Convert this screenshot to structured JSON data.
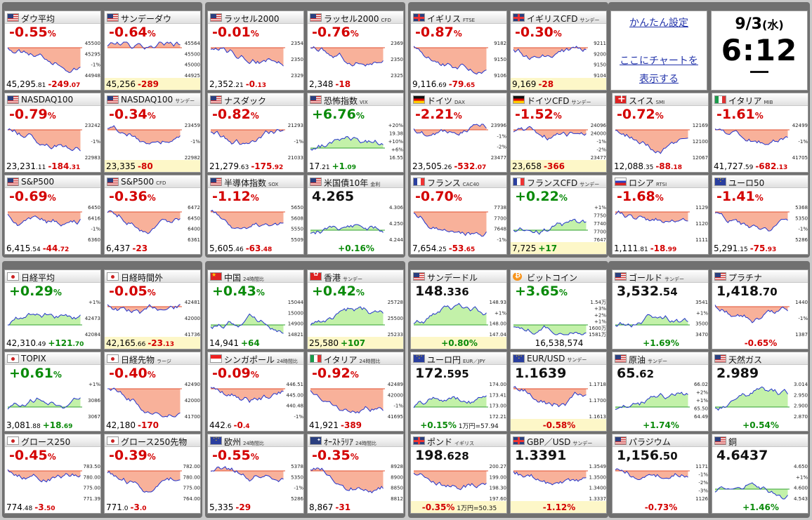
{
  "settings": {
    "link1": "かんたん設定",
    "link2a": "ここにチャートを",
    "link2b": "表示する"
  },
  "clock": {
    "date": "9/3",
    "weekday": "(水)",
    "time": "6:12"
  },
  "tiles": [
    {
      "name": "ダウ平均",
      "sub": "",
      "flag": "us",
      "big": "-0.55",
      "bigunit": "%",
      "dir": "neg",
      "last": "45,295",
      "lastdec": ".81",
      "chg": "-249",
      "chgdec": ".07",
      "labels": [
        "45500",
        "45295",
        "-1%",
        "44948"
      ],
      "mode": "pct"
    },
    {
      "name": "サンデーダウ",
      "sub": "",
      "flag": "us",
      "big": "-0.64",
      "bigunit": "%",
      "dir": "neg",
      "last": "45,256",
      "lastdec": "",
      "chg": "-289",
      "chgdec": "",
      "labels": [
        "45564",
        "45500",
        "45000",
        "44925"
      ],
      "mode": "pct",
      "yellow": true
    },
    {
      "name": "ラッセル2000",
      "sub": "",
      "flag": "us",
      "big": "-0.01",
      "bigunit": "%",
      "dir": "neg",
      "last": "2,352",
      "lastdec": ".21",
      "chg": "-0",
      "chgdec": ".13",
      "labels": [
        "2354",
        "2350",
        "2329"
      ],
      "mode": "pct"
    },
    {
      "name": "ラッセル2000",
      "sub": "CFD",
      "flag": "us",
      "big": "-0.76",
      "bigunit": "%",
      "dir": "neg",
      "last": "2,348",
      "lastdec": "",
      "chg": "-18",
      "chgdec": "",
      "labels": [
        "2369",
        "2350",
        "2325"
      ],
      "mode": "pct"
    },
    {
      "name": "イギリス",
      "sub": "FTSE",
      "flag": "gb",
      "big": "-0.87",
      "bigunit": "%",
      "dir": "neg",
      "last": "9,116",
      "lastdec": ".69",
      "chg": "-79",
      "chgdec": ".65",
      "labels": [
        "9182",
        "9150",
        "9106"
      ],
      "mode": "pct"
    },
    {
      "name": "イギリスCFD",
      "sub": "サンデー",
      "flag": "gb",
      "big": "-0.30",
      "bigunit": "%",
      "dir": "neg",
      "last": "9,169",
      "lastdec": "",
      "chg": "-28",
      "chgdec": "",
      "labels": [
        "9211",
        "9200",
        "9150",
        "9104"
      ],
      "mode": "pct",
      "yellow": true
    },
    {
      "name": "NASDAQ100",
      "sub": "",
      "flag": "us",
      "big": "-0.79",
      "bigunit": "%",
      "dir": "neg",
      "last": "23,231",
      "lastdec": ".11",
      "chg": "-184",
      "chgdec": ".31",
      "labels": [
        "23242",
        "-1%",
        "22983"
      ],
      "mode": "pct"
    },
    {
      "name": "NASDAQ100",
      "sub": "サンデー",
      "flag": "us",
      "big": "-0.34",
      "bigunit": "%",
      "dir": "neg",
      "last": "23,335",
      "lastdec": "",
      "chg": "-80",
      "chgdec": "",
      "labels": [
        "23459",
        "-1%",
        "22982"
      ],
      "mode": "pct",
      "yellow": true
    },
    {
      "name": "ナスダック",
      "sub": "",
      "flag": "us",
      "big": "-0.82",
      "bigunit": "%",
      "dir": "neg",
      "last": "21,279",
      "lastdec": ".63",
      "chg": "-175",
      "chgdec": ".92",
      "labels": [
        "21293",
        "-1%",
        "21033"
      ],
      "mode": "pct"
    },
    {
      "name": "恐怖指数",
      "sub": "VIX",
      "flag": "us",
      "big": "+6.76",
      "bigunit": "%",
      "dir": "pos",
      "last": "17",
      "lastdec": ".21",
      "chg": "+1",
      "chgdec": ".09",
      "labels": [
        "+20%",
        "19.38",
        "+10%",
        "+6%",
        "16.55"
      ],
      "mode": "pct"
    },
    {
      "name": "ドイツ",
      "sub": "DAX",
      "flag": "de",
      "big": "-2.21",
      "bigunit": "%",
      "dir": "neg",
      "last": "23,505",
      "lastdec": ".26",
      "chg": "-532",
      "chgdec": ".07",
      "labels": [
        "23996",
        "-1%",
        "-2%",
        "23477"
      ],
      "mode": "pct"
    },
    {
      "name": "ドイツCFD",
      "sub": "サンデー",
      "flag": "de",
      "big": "-1.52",
      "bigunit": "%",
      "dir": "neg",
      "last": "23,658",
      "lastdec": "",
      "chg": "-366",
      "chgdec": "",
      "labels": [
        "24096",
        "24000",
        "-1%",
        "-2%",
        "23477"
      ],
      "mode": "pct",
      "yellow": true
    },
    {
      "name": "スイス",
      "sub": "SMI",
      "flag": "ch",
      "big": "-0.72",
      "bigunit": "%",
      "dir": "neg",
      "last": "12,088",
      "lastdec": ".35",
      "chg": "-88",
      "chgdec": ".18",
      "labels": [
        "12169",
        "12100",
        "12067"
      ],
      "mode": "pct"
    },
    {
      "name": "イタリア",
      "sub": "MIB",
      "flag": "it",
      "big": "-1.61",
      "bigunit": "%",
      "dir": "neg",
      "last": "41,727",
      "lastdec": ".59",
      "chg": "-682",
      "chgdec": ".13",
      "labels": [
        "42499",
        "-1%",
        "41705"
      ],
      "mode": "pct"
    },
    {
      "name": "S&P500",
      "sub": "",
      "flag": "us",
      "big": "-0.69",
      "bigunit": "%",
      "dir": "neg",
      "last": "6,415",
      "lastdec": ".54",
      "chg": "-44",
      "chgdec": ".72",
      "labels": [
        "6450",
        "6416",
        "-1%",
        "6360"
      ],
      "mode": "pct"
    },
    {
      "name": "S&P500",
      "sub": "CFD",
      "flag": "us",
      "big": "-0.36",
      "bigunit": "%",
      "dir": "neg",
      "last": "6,437",
      "lastdec": "",
      "chg": "-23",
      "chgdec": "",
      "labels": [
        "6472",
        "6450",
        "6400",
        "6361"
      ],
      "mode": "pct"
    },
    {
      "name": "半導体指数",
      "sub": "SOX",
      "flag": "us",
      "big": "-1.12",
      "bigunit": "%",
      "dir": "neg",
      "last": "5,605",
      "lastdec": ".46",
      "chg": "-63",
      "chgdec": ".48",
      "labels": [
        "5650",
        "5608",
        "5550",
        "5509"
      ],
      "mode": "pct"
    },
    {
      "name": "米国債10年",
      "sub": "金利",
      "flag": "us",
      "big": "4.265",
      "bigunit": "",
      "dir": "blk",
      "last": "",
      "lastdec": "",
      "chg": "+0.16%",
      "chgdec": "",
      "labels": [
        "4.306",
        "4.250",
        "4.244"
      ],
      "mode": "center",
      "cdir": "pos"
    },
    {
      "name": "フランス",
      "sub": "CAC40",
      "flag": "fr",
      "big": "-0.70",
      "bigunit": "%",
      "dir": "neg",
      "last": "7,654",
      "lastdec": ".25",
      "chg": "-53",
      "chgdec": ".65",
      "labels": [
        "7738",
        "7700",
        "7648",
        "-1%"
      ],
      "mode": "pct"
    },
    {
      "name": "フランスCFD",
      "sub": "サンデー",
      "flag": "fr",
      "big": "+0.22",
      "bigunit": "%",
      "dir": "pos",
      "last": "7,725",
      "lastdec": "",
      "chg": "+17",
      "chgdec": "",
      "labels": [
        "+1%",
        "7750",
        "7740",
        "7700",
        "7647"
      ],
      "mode": "pct",
      "yellow": true
    },
    {
      "name": "ロシア",
      "sub": "RTSI",
      "flag": "ru",
      "big": "-1.68",
      "bigunit": "%",
      "dir": "neg",
      "last": "1,111",
      "lastdec": ".81",
      "chg": "-18",
      "chgdec": ".99",
      "labels": [
        "1129",
        "1120",
        "1111"
      ],
      "mode": "pct"
    },
    {
      "name": "ユーロ50",
      "sub": "",
      "flag": "eu",
      "big": "-1.41",
      "bigunit": "%",
      "dir": "neg",
      "last": "5,291",
      "lastdec": ".15",
      "chg": "-75",
      "chgdec": ".93",
      "labels": [
        "5368",
        "5350",
        "-1%",
        "5286"
      ],
      "mode": "pct"
    },
    {
      "name": "日経平均",
      "sub": "",
      "flag": "jp",
      "big": "+0.29",
      "bigunit": "%",
      "dir": "pos",
      "last": "42,310",
      "lastdec": ".49",
      "chg": "+121",
      "chgdec": ".70",
      "labels": [
        "+1%",
        "42473",
        "42084"
      ],
      "mode": "pct"
    },
    {
      "name": "日経時間外",
      "sub": "",
      "flag": "jp",
      "big": "-0.05",
      "bigunit": "%",
      "dir": "neg",
      "last": "42,165",
      "lastdec": ".66",
      "chg": "-23",
      "chgdec": ".13",
      "labels": [
        "42481",
        "42000",
        "41736"
      ],
      "mode": "pct",
      "yellow": true
    },
    {
      "name": "中国",
      "sub": "24時間比",
      "flag": "cn",
      "big": "+0.43",
      "bigunit": "%",
      "dir": "pos",
      "last": "14,941",
      "lastdec": "",
      "chg": "+64",
      "chgdec": "",
      "labels": [
        "15044",
        "15000",
        "14900",
        "14821"
      ],
      "mode": "pct"
    },
    {
      "name": "香港",
      "sub": "サンデー",
      "flag": "hk",
      "big": "+0.42",
      "bigunit": "%",
      "dir": "pos",
      "last": "25,580",
      "lastdec": "",
      "chg": "+107",
      "chgdec": "",
      "labels": [
        "25728",
        "25500",
        "25233"
      ],
      "mode": "pct",
      "yellow": true
    },
    {
      "name": "サンデードル",
      "sub": "",
      "flag": "us",
      "big": "148",
      "bigdec": ".336",
      "bigunit": "",
      "dir": "blk",
      "last": "",
      "lastdec": "",
      "chg": "+0.80%",
      "chgdec": "",
      "labels": [
        "148.93",
        "+1%",
        "148.00",
        "147.04"
      ],
      "mode": "center",
      "cdir": "pos",
      "yellow": true
    },
    {
      "name": "ビットコイン",
      "sub": "",
      "flag": "btc",
      "big": "+3.65",
      "bigunit": "%",
      "dir": "pos",
      "last": "16,538,574",
      "lastdec": "",
      "chg": "",
      "chgdec": "",
      "labels": [
        "1.54万",
        "+3%",
        "+2%",
        "+1%",
        "1600万",
        "1581万"
      ],
      "mode": "pct",
      "nochg": true
    },
    {
      "name": "ゴールド",
      "sub": "サンデー",
      "flag": "us",
      "big": "3,532",
      "bigdec": ".54",
      "bigunit": "",
      "dir": "blk",
      "last": "",
      "lastdec": "",
      "chg": "+1.69%",
      "chgdec": "",
      "labels": [
        "3541",
        "+1%",
        "3500",
        "3470"
      ],
      "mode": "center",
      "cdir": "pos"
    },
    {
      "name": "プラチナ",
      "sub": "",
      "flag": "us",
      "big": "1,418",
      "bigdec": ".70",
      "bigunit": "",
      "dir": "blk",
      "last": "",
      "lastdec": "",
      "chg": "-0.65%",
      "chgdec": "",
      "labels": [
        "1440",
        "-1%",
        "1387"
      ],
      "mode": "center",
      "cdir": "neg"
    },
    {
      "name": "TOPIX",
      "sub": "",
      "flag": "jp",
      "big": "+0.61",
      "bigunit": "%",
      "dir": "pos",
      "last": "3,081",
      "lastdec": ".88",
      "chg": "+18",
      "chgdec": ".69",
      "labels": [
        "+1%",
        "3086",
        "3067"
      ],
      "mode": "pct"
    },
    {
      "name": "日経先物",
      "sub": "ラージ",
      "flag": "jp",
      "big": "-0.40",
      "bigunit": "%",
      "dir": "neg",
      "last": "42,180",
      "lastdec": "",
      "chg": "-170",
      "chgdec": "",
      "labels": [
        "42490",
        "42000",
        "41700"
      ],
      "mode": "pct"
    },
    {
      "name": "シンガポール",
      "sub": "24時間比",
      "flag": "sg",
      "big": "-0.09",
      "bigunit": "%",
      "dir": "neg",
      "last": "442",
      "lastdec": ".6",
      "chg": "-0",
      "chgdec": ".4",
      "labels": [
        "446.51",
        "445.00",
        "440.48",
        "-1%"
      ],
      "mode": "pct"
    },
    {
      "name": "イタリア",
      "sub": "24時間比",
      "flag": "it",
      "big": "-0.92",
      "bigunit": "%",
      "dir": "neg",
      "last": "41,921",
      "lastdec": "",
      "chg": "-389",
      "chgdec": "",
      "labels": [
        "42489",
        "42000",
        "-1%",
        "41695"
      ],
      "mode": "pct"
    },
    {
      "name": "ユーロ円",
      "sub": "EUR／JPY",
      "flag": "eu",
      "big": "172",
      "bigdec": ".595",
      "bigunit": "",
      "dir": "blk",
      "last": "",
      "lastdec": "",
      "chg": "+0.15%",
      "chgdec": "",
      "note": "1万円=57.94",
      "labels": [
        "174.00",
        "173.41",
        "173.00",
        "172.21"
      ],
      "mode": "center",
      "cdir": "pos"
    },
    {
      "name": "EUR/USD",
      "sub": "サンデー",
      "flag": "eu",
      "big": "1.1639",
      "bigunit": "",
      "dir": "blk",
      "last": "",
      "lastdec": "",
      "chg": "-0.58%",
      "chgdec": "",
      "labels": [
        "1.1718",
        "1.1700",
        "1.1613"
      ],
      "mode": "center",
      "cdir": "neg",
      "yellow": true
    },
    {
      "name": "原油",
      "sub": "サンデー",
      "flag": "us",
      "big": "65",
      "bigdec": ".62",
      "bigunit": "",
      "dir": "blk",
      "last": "",
      "lastdec": "",
      "chg": "+1.74%",
      "chgdec": "",
      "labels": [
        "66.02",
        "+2%",
        "+1%",
        "65.50",
        "64.49"
      ],
      "mode": "center",
      "cdir": "pos"
    },
    {
      "name": "天然ガス",
      "sub": "",
      "flag": "us",
      "big": "2.989",
      "bigunit": "",
      "dir": "blk",
      "last": "",
      "lastdec": "",
      "chg": "+0.54%",
      "chgdec": "",
      "labels": [
        "3.014",
        "2.950",
        "2.900",
        "2.870"
      ],
      "mode": "center",
      "cdir": "pos"
    },
    {
      "name": "グロース250",
      "sub": "",
      "flag": "jp",
      "big": "-0.45",
      "bigunit": "%",
      "dir": "neg",
      "last": "774",
      "lastdec": ".48",
      "chg": "-3",
      "chgdec": ".50",
      "labels": [
        "783.50",
        "780.00",
        "775.00",
        "771.39"
      ],
      "mode": "pct"
    },
    {
      "name": "グロース250先物",
      "sub": "",
      "flag": "jp",
      "big": "-0.39",
      "bigunit": "%",
      "dir": "neg",
      "last": "771",
      "lastdec": ".0",
      "chg": "-3",
      "chgdec": ".0",
      "labels": [
        "782.00",
        "780.00",
        "775.00",
        "764.00"
      ],
      "mode": "pct"
    },
    {
      "name": "欧州",
      "sub": "24時間比",
      "flag": "eu",
      "big": "-0.55",
      "bigunit": "%",
      "dir": "neg",
      "last": "5,335",
      "lastdec": "",
      "chg": "-29",
      "chgdec": "",
      "labels": [
        "5378",
        "5350",
        "-1%",
        "5286"
      ],
      "mode": "pct"
    },
    {
      "name": "ｵｰｽﾄﾗﾘｱ",
      "sub": "24時間比",
      "flag": "au",
      "big": "-0.35",
      "bigunit": "%",
      "dir": "neg",
      "last": "8,867",
      "lastdec": "",
      "chg": "-31",
      "chgdec": "",
      "labels": [
        "8928",
        "8900",
        "8850",
        "8812"
      ],
      "mode": "pct"
    },
    {
      "name": "ポンド",
      "sub": "イギリス",
      "flag": "gb",
      "big": "198",
      "bigdec": ".628",
      "bigunit": "",
      "dir": "blk",
      "last": "",
      "lastdec": "",
      "chg": "-0.35%",
      "chgdec": "",
      "note": "1万円=50.35",
      "labels": [
        "200.27",
        "199.00",
        "198.30",
        "197.60"
      ],
      "mode": "center",
      "cdir": "neg",
      "yellow": true
    },
    {
      "name": "GBP／USD",
      "sub": "サンデー",
      "flag": "gb",
      "big": "1.3391",
      "bigunit": "",
      "dir": "blk",
      "last": "",
      "lastdec": "",
      "chg": "-1.12%",
      "chgdec": "",
      "labels": [
        "1.3549",
        "1.3500",
        "1.3400",
        "1.3337"
      ],
      "mode": "center",
      "cdir": "neg",
      "yellow": true
    },
    {
      "name": "パラジウム",
      "sub": "",
      "flag": "us",
      "big": "1,156",
      "bigdec": ".50",
      "bigunit": "",
      "dir": "blk",
      "last": "",
      "lastdec": "",
      "chg": "-0.73%",
      "chgdec": "",
      "labels": [
        "1171",
        "-1%",
        "-2%",
        "-3%",
        "1126"
      ],
      "mode": "center",
      "cdir": "neg"
    },
    {
      "name": "銅",
      "sub": "",
      "flag": "us",
      "big": "4.6437",
      "bigunit": "",
      "dir": "blk",
      "last": "",
      "lastdec": "",
      "chg": "+1.46%",
      "chgdec": "",
      "labels": [
        "4.650",
        "+1%",
        "4.600",
        "4.543"
      ],
      "mode": "center",
      "cdir": "pos"
    }
  ]
}
